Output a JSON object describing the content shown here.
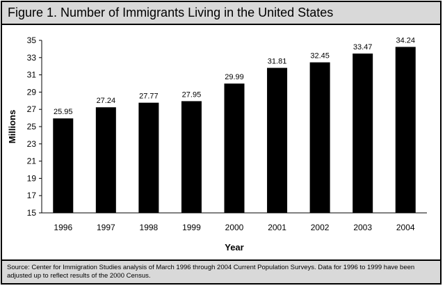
{
  "figure": {
    "title": "Figure 1. Number of Immigrants Living in the United States",
    "source": "Source: Center for Immigration Studies analysis of March 1996 through 2004 Current Population Surveys.  Data for 1996 to 1999 have been adjusted up to reflect results of the 2000 Census."
  },
  "colors": {
    "bar": "#000000",
    "header_band": "#d9d9d9",
    "frame": "#000000"
  },
  "chart_data": {
    "type": "bar",
    "xlabel": "Year",
    "ylabel": "Millions",
    "categories": [
      "1996",
      "1997",
      "1998",
      "1999",
      "2000",
      "2001",
      "2002",
      "2003",
      "2004"
    ],
    "values": [
      25.95,
      27.24,
      27.77,
      27.95,
      29.99,
      31.81,
      32.45,
      33.47,
      34.24
    ],
    "value_labels": [
      "25.95",
      "27.24",
      "27.77",
      "27.95",
      "29.99",
      "31.81",
      "32.45",
      "33.47",
      "34.24"
    ],
    "ylim": [
      15,
      35
    ],
    "yticks": [
      15,
      17,
      19,
      21,
      23,
      25,
      27,
      29,
      31,
      33,
      35
    ],
    "ytick_labels": [
      "15",
      "17",
      "19",
      "21",
      "23",
      "25",
      "27",
      "29",
      "31",
      "33",
      "35"
    ],
    "grid": false,
    "legend": "none"
  }
}
